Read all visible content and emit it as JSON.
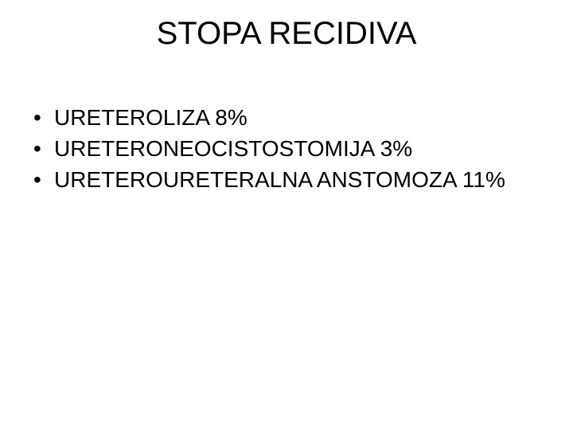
{
  "slide": {
    "title": "STOPA  RECIDIVA",
    "title_fontsize": 40,
    "background_color": "#ffffff",
    "text_color": "#000000",
    "bullets": [
      "URETEROLIZA 8%",
      "URETERONEOCISTOSTOMIJA 3%",
      "URETEROURETERALNA ANSTOMOZA 11%"
    ],
    "bullet_fontsize": 28
  }
}
